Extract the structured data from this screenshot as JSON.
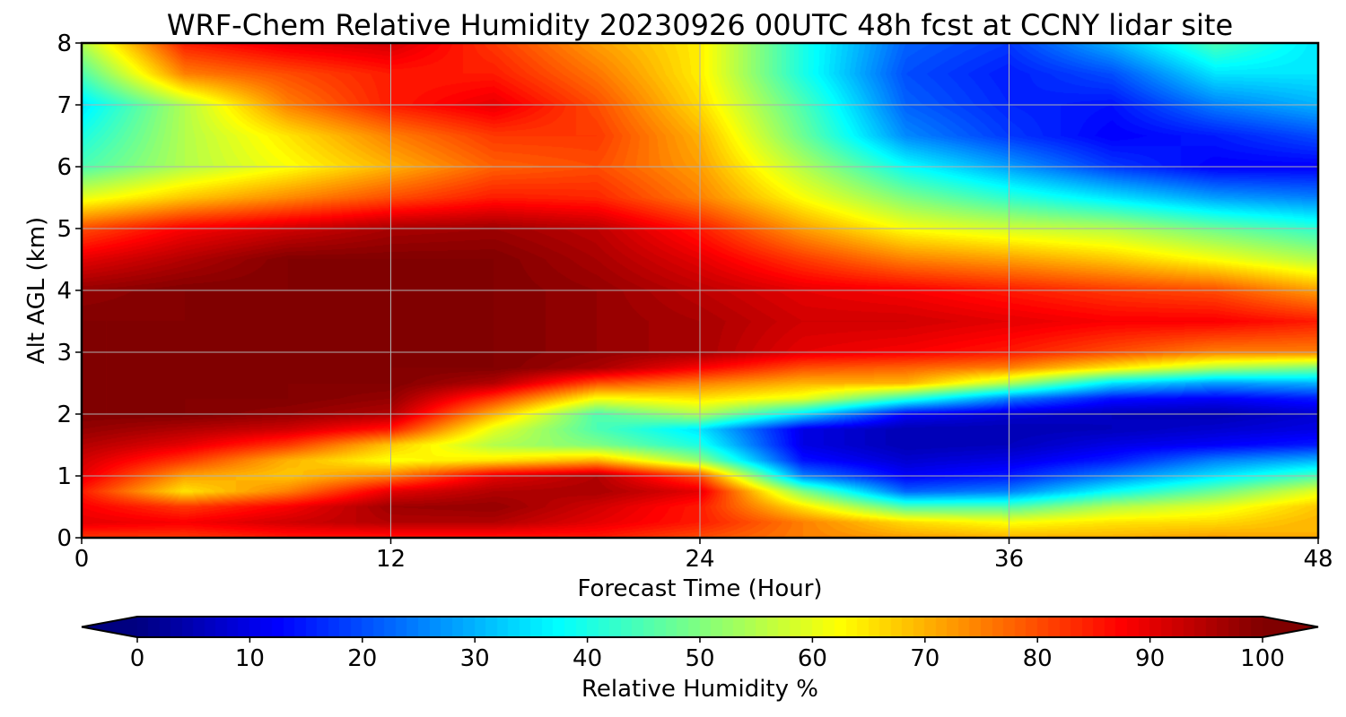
{
  "chart_data": {
    "type": "heatmap",
    "title": "WRF-Chem Relative Humidity 20230926 00UTC 48h fcst at CCNY lidar site",
    "xlabel": "Forecast Time (Hour)",
    "ylabel": "Alt AGL (km)",
    "xlim": [
      0,
      48
    ],
    "ylim": [
      0,
      8
    ],
    "x_ticks": [
      "0",
      "12",
      "24",
      "36",
      "48"
    ],
    "y_ticks": [
      "0",
      "1",
      "2",
      "3",
      "4",
      "5",
      "6",
      "7",
      "8"
    ],
    "grid": true,
    "colormap": "jet",
    "colorbar": {
      "label": "Relative Humidity %",
      "range": [
        0,
        100
      ],
      "ticks": [
        "0",
        "10",
        "20",
        "30",
        "40",
        "50",
        "60",
        "70",
        "80",
        "90",
        "100"
      ],
      "extend": "both",
      "orientation": "horizontal"
    },
    "x": [
      0,
      4,
      8,
      12,
      16,
      20,
      24,
      28,
      32,
      36,
      40,
      44,
      48
    ],
    "y": [
      0,
      0.25,
      0.5,
      0.75,
      1,
      1.25,
      1.5,
      1.75,
      2,
      2.25,
      2.5,
      2.75,
      3,
      3.5,
      4,
      4.5,
      5,
      5.5,
      6,
      6.5,
      7,
      7.5,
      8
    ],
    "z": [
      [
        82,
        82,
        85,
        85,
        85,
        85,
        80,
        75,
        72,
        70,
        70,
        72,
        70
      ],
      [
        90,
        88,
        92,
        95,
        95,
        90,
        85,
        75,
        66,
        62,
        65,
        66,
        70
      ],
      [
        88,
        82,
        88,
        97,
        98,
        92,
        85,
        65,
        45,
        45,
        55,
        60,
        68
      ],
      [
        85,
        65,
        75,
        90,
        95,
        96,
        90,
        50,
        22,
        25,
        38,
        48,
        60
      ],
      [
        90,
        72,
        68,
        75,
        90,
        95,
        80,
        25,
        12,
        15,
        25,
        35,
        45
      ],
      [
        92,
        82,
        70,
        62,
        65,
        70,
        52,
        14,
        8,
        10,
        15,
        25,
        30
      ],
      [
        95,
        90,
        82,
        68,
        55,
        50,
        40,
        10,
        5,
        6,
        10,
        12,
        15
      ],
      [
        98,
        95,
        92,
        85,
        60,
        45,
        35,
        10,
        5,
        5,
        6,
        8,
        10
      ],
      [
        100,
        100,
        98,
        95,
        70,
        45,
        55,
        35,
        12,
        8,
        6,
        5,
        8
      ],
      [
        100,
        100,
        100,
        98,
        82,
        62,
        65,
        60,
        42,
        25,
        14,
        12,
        15
      ],
      [
        100,
        100,
        100,
        100,
        95,
        80,
        75,
        70,
        70,
        55,
        35,
        28,
        30
      ],
      [
        100,
        100,
        100,
        100,
        100,
        96,
        88,
        80,
        78,
        75,
        65,
        55,
        50
      ],
      [
        100,
        100,
        100,
        100,
        100,
        98,
        96,
        90,
        88,
        85,
        80,
        75,
        75
      ],
      [
        100,
        100,
        100,
        100,
        100,
        98,
        96,
        92,
        92,
        90,
        88,
        88,
        85
      ],
      [
        98,
        100,
        100,
        100,
        100,
        98,
        94,
        90,
        88,
        85,
        82,
        80,
        72
      ],
      [
        90,
        95,
        100,
        100,
        100,
        96,
        90,
        82,
        75,
        72,
        68,
        62,
        55
      ],
      [
        80,
        88,
        92,
        96,
        97,
        94,
        85,
        72,
        62,
        58,
        55,
        48,
        42
      ],
      [
        60,
        68,
        74,
        80,
        85,
        84,
        75,
        62,
        50,
        42,
        35,
        28,
        25
      ],
      [
        45,
        55,
        62,
        70,
        78,
        80,
        72,
        55,
        38,
        28,
        18,
        12,
        12
      ],
      [
        40,
        55,
        65,
        75,
        82,
        82,
        70,
        48,
        26,
        18,
        12,
        15,
        20
      ],
      [
        35,
        55,
        75,
        85,
        90,
        80,
        66,
        45,
        22,
        16,
        14,
        25,
        30
      ],
      [
        45,
        75,
        80,
        85,
        85,
        76,
        64,
        40,
        20,
        15,
        20,
        35,
        35
      ],
      [
        55,
        85,
        90,
        92,
        82,
        72,
        64,
        40,
        22,
        18,
        30,
        45,
        35
      ]
    ]
  }
}
